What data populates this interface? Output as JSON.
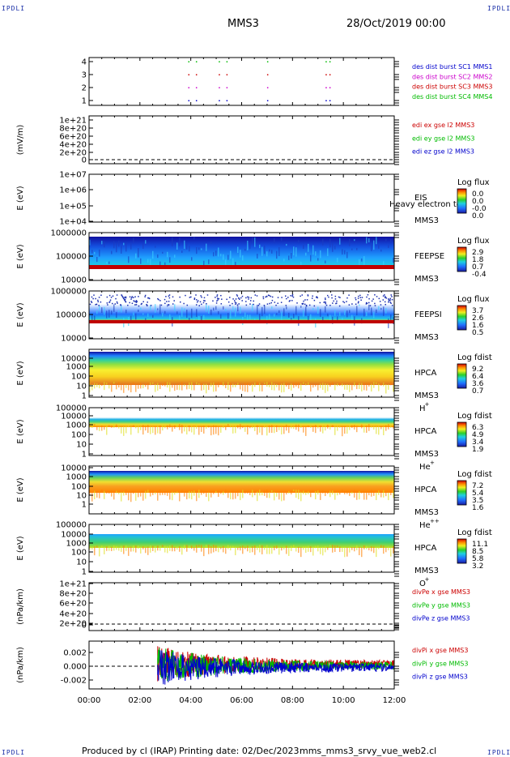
{
  "header": {
    "mission": "MMS3",
    "date": "28/Oct/2019 00:00",
    "corner_label": "IPDLI"
  },
  "footer": {
    "produced_by": "Produced by cl (IRAP)",
    "printing_date": "Printing date: 02/Dec/2023",
    "script_name": "mms_mms3_srvy_vue_web2.cl"
  },
  "colors": {
    "mms1": "#0000cc",
    "mms2": "#cc00cc",
    "mms3": "#cc0000",
    "mms4": "#00bb00"
  },
  "time_axis": {
    "ticks": [
      "00:00",
      "02:00",
      "04:00",
      "06:00",
      "08:00",
      "10:00",
      "12:00"
    ]
  },
  "panels": [
    {
      "id": "burst",
      "ylabel": "",
      "yticks": [
        "4",
        "3",
        "2",
        "1"
      ],
      "right_labels": [
        {
          "text": "des dist burst SC1 MMS1",
          "color": "#0000cc"
        },
        {
          "text": "des dist burst SC2 MMS2",
          "color": "#cc00cc"
        },
        {
          "text": "des dist burst SC3 MMS3",
          "color": "#cc0000"
        },
        {
          "text": "des dist burst SC4 MMS4",
          "color": "#00bb00"
        }
      ]
    },
    {
      "id": "edi",
      "ylabel": "(mV/m)",
      "yticks": [
        "1e+21",
        "8e+20",
        "6e+20",
        "4e+20",
        "2e+20",
        "0"
      ],
      "right_labels": [
        {
          "text": "edi ex gse l2 MMS3",
          "color": "#cc0000"
        },
        {
          "text": "edi ey gse l2 MMS3",
          "color": "#00bb00"
        },
        {
          "text": "edi ez gse l2 MMS3",
          "color": "#0000cc"
        }
      ]
    },
    {
      "id": "eis",
      "ylabel": "E (eV)",
      "yticks": [
        "1e+07",
        "1e+06",
        "1e+05",
        "1e+04"
      ],
      "instrument": "EIS",
      "instrument_extra": "Heavy electron to",
      "spacecraft": "MMS3",
      "cbar_title": "Log flux",
      "cbar_values": [
        "0.0",
        "0.0",
        "-0.0",
        "0.0"
      ]
    },
    {
      "id": "feepse",
      "ylabel": "E (eV)",
      "yticks": [
        "1000000",
        "100000",
        "10000"
      ],
      "instrument": "FEEPSE",
      "spacecraft": "MMS3",
      "cbar_title": "Log flux",
      "cbar_values": [
        "2.9",
        "1.8",
        "0.7",
        "-0.4"
      ]
    },
    {
      "id": "feepsi",
      "ylabel": "E (eV)",
      "yticks": [
        "1000000",
        "100000",
        "10000"
      ],
      "instrument": "FEEPSI",
      "spacecraft": "MMS3",
      "cbar_title": "Log flux",
      "cbar_values": [
        "3.7",
        "2.6",
        "1.6",
        "0.5"
      ]
    },
    {
      "id": "hpca_h",
      "ylabel": "E (eV)",
      "yticks": [
        "10000",
        "1000",
        "100",
        "10",
        "1"
      ],
      "instrument": "HPCA",
      "spacecraft": "MMS3",
      "species": "H",
      "species_sup": "+",
      "cbar_title": "Log fdist",
      "cbar_values": [
        "9.2",
        "6.4",
        "3.6",
        "0.7"
      ]
    },
    {
      "id": "hpca_he",
      "ylabel": "E (eV)",
      "yticks": [
        "100000",
        "10000",
        "1000",
        "100",
        "10",
        "1"
      ],
      "instrument": "HPCA",
      "spacecraft": "MMS3",
      "species": "He",
      "species_sup": "+",
      "cbar_title": "Log fdist",
      "cbar_values": [
        "6.3",
        "4.9",
        "3.4",
        "1.9"
      ]
    },
    {
      "id": "hpca_hepp",
      "ylabel": "E (eV)",
      "yticks": [
        "10000",
        "1000",
        "100",
        "10",
        "1"
      ],
      "instrument": "HPCA",
      "spacecraft": "MMS3",
      "species": "He",
      "species_sup": "++",
      "cbar_title": "Log fdist",
      "cbar_values": [
        "7.2",
        "5.4",
        "3.5",
        "1.6"
      ]
    },
    {
      "id": "hpca_o",
      "ylabel": "E (eV)",
      "yticks": [
        "100000",
        "10000",
        "1000",
        "100",
        "10",
        "1"
      ],
      "instrument": "HPCA",
      "spacecraft": "MMS3",
      "species": "O",
      "species_sup": "+",
      "cbar_title": "Log fdist",
      "cbar_values": [
        "11.1",
        "8.5",
        "5.8",
        "3.2"
      ]
    },
    {
      "id": "divpe",
      "ylabel": "(nPa/km)",
      "yticks": [
        "1e+21",
        "8e+20",
        "6e+20",
        "4e+20",
        "2e+20",
        "0"
      ],
      "right_labels": [
        {
          "text": "divPe x gse MMS3",
          "color": "#cc0000"
        },
        {
          "text": "divPe y gse MMS3",
          "color": "#00bb00"
        },
        {
          "text": "divPe z gse MMS3",
          "color": "#0000cc"
        }
      ]
    },
    {
      "id": "divpi",
      "ylabel": "(nPa/km)",
      "yticks": [
        "0.002",
        "0.000",
        "-0.002"
      ],
      "right_labels": [
        {
          "text": "divPi x gse MMS3",
          "color": "#cc0000"
        },
        {
          "text": "divPi y gse MMS3",
          "color": "#00bb00"
        },
        {
          "text": "divPi z gse MMS3",
          "color": "#0000cc"
        }
      ]
    }
  ],
  "chart_data": {
    "type": "line",
    "title": "MMS3",
    "xlabel": "",
    "x_range_hours": [
      0,
      12
    ],
    "divPi": {
      "ylim": [
        -0.003,
        0.003
      ],
      "data_start_hour": 2.7,
      "series": [
        {
          "name": "divPi x gse MMS3",
          "color": "#cc0000"
        },
        {
          "name": "divPi y gse MMS3",
          "color": "#00bb00"
        },
        {
          "name": "divPi z gse MMS3",
          "color": "#0000cc"
        }
      ]
    },
    "burst": {
      "tick_marks_hours": [
        3.9,
        4.2,
        5.1,
        5.4,
        7.0,
        9.3,
        9.45
      ]
    }
  }
}
